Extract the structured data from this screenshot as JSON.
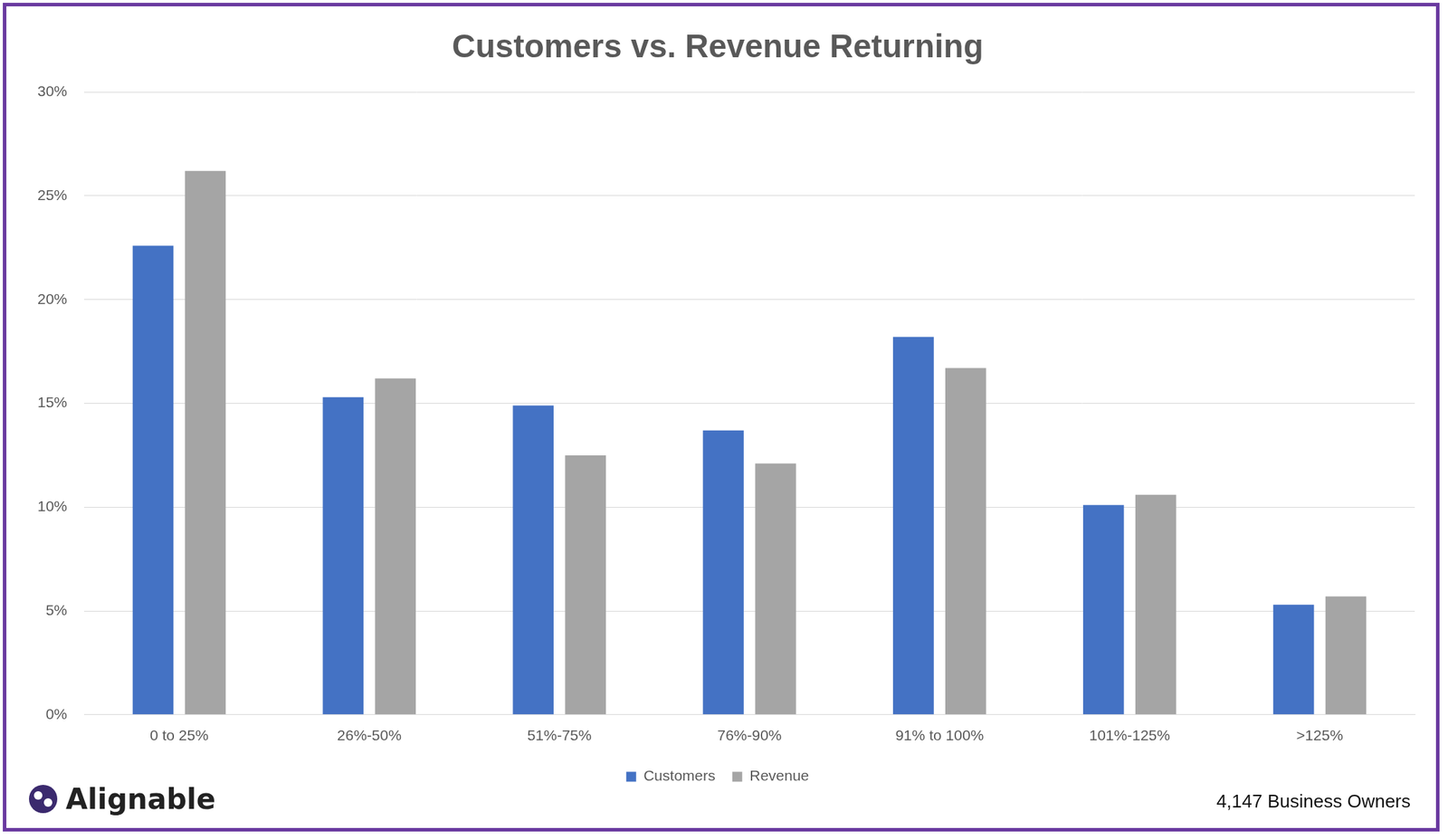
{
  "chart_data": {
    "type": "bar",
    "title": "Customers vs. Revenue Returning",
    "categories": [
      "0 to 25%",
      "26%-50%",
      "51%-75%",
      "76%-90%",
      "91% to 100%",
      "101%-125%",
      ">125%"
    ],
    "series": [
      {
        "name": "Customers",
        "color": "#4472c4",
        "values": [
          22.6,
          15.3,
          14.9,
          13.7,
          18.2,
          10.1,
          5.3
        ]
      },
      {
        "name": "Revenue",
        "color": "#a5a5a5",
        "values": [
          26.2,
          16.2,
          12.5,
          12.1,
          16.7,
          10.6,
          5.7
        ]
      }
    ],
    "ylim": [
      0,
      30
    ],
    "yticks": [
      {
        "value": 0,
        "label": "0%"
      },
      {
        "value": 5,
        "label": "5%"
      },
      {
        "value": 10,
        "label": "10%"
      },
      {
        "value": 15,
        "label": "15%"
      },
      {
        "value": 20,
        "label": "20%"
      },
      {
        "value": 25,
        "label": "25%"
      },
      {
        "value": 30,
        "label": "30%"
      }
    ],
    "grid": true,
    "legend": "bottom",
    "annotations": [
      "Alignable",
      "4,147 Business Owners"
    ]
  }
}
